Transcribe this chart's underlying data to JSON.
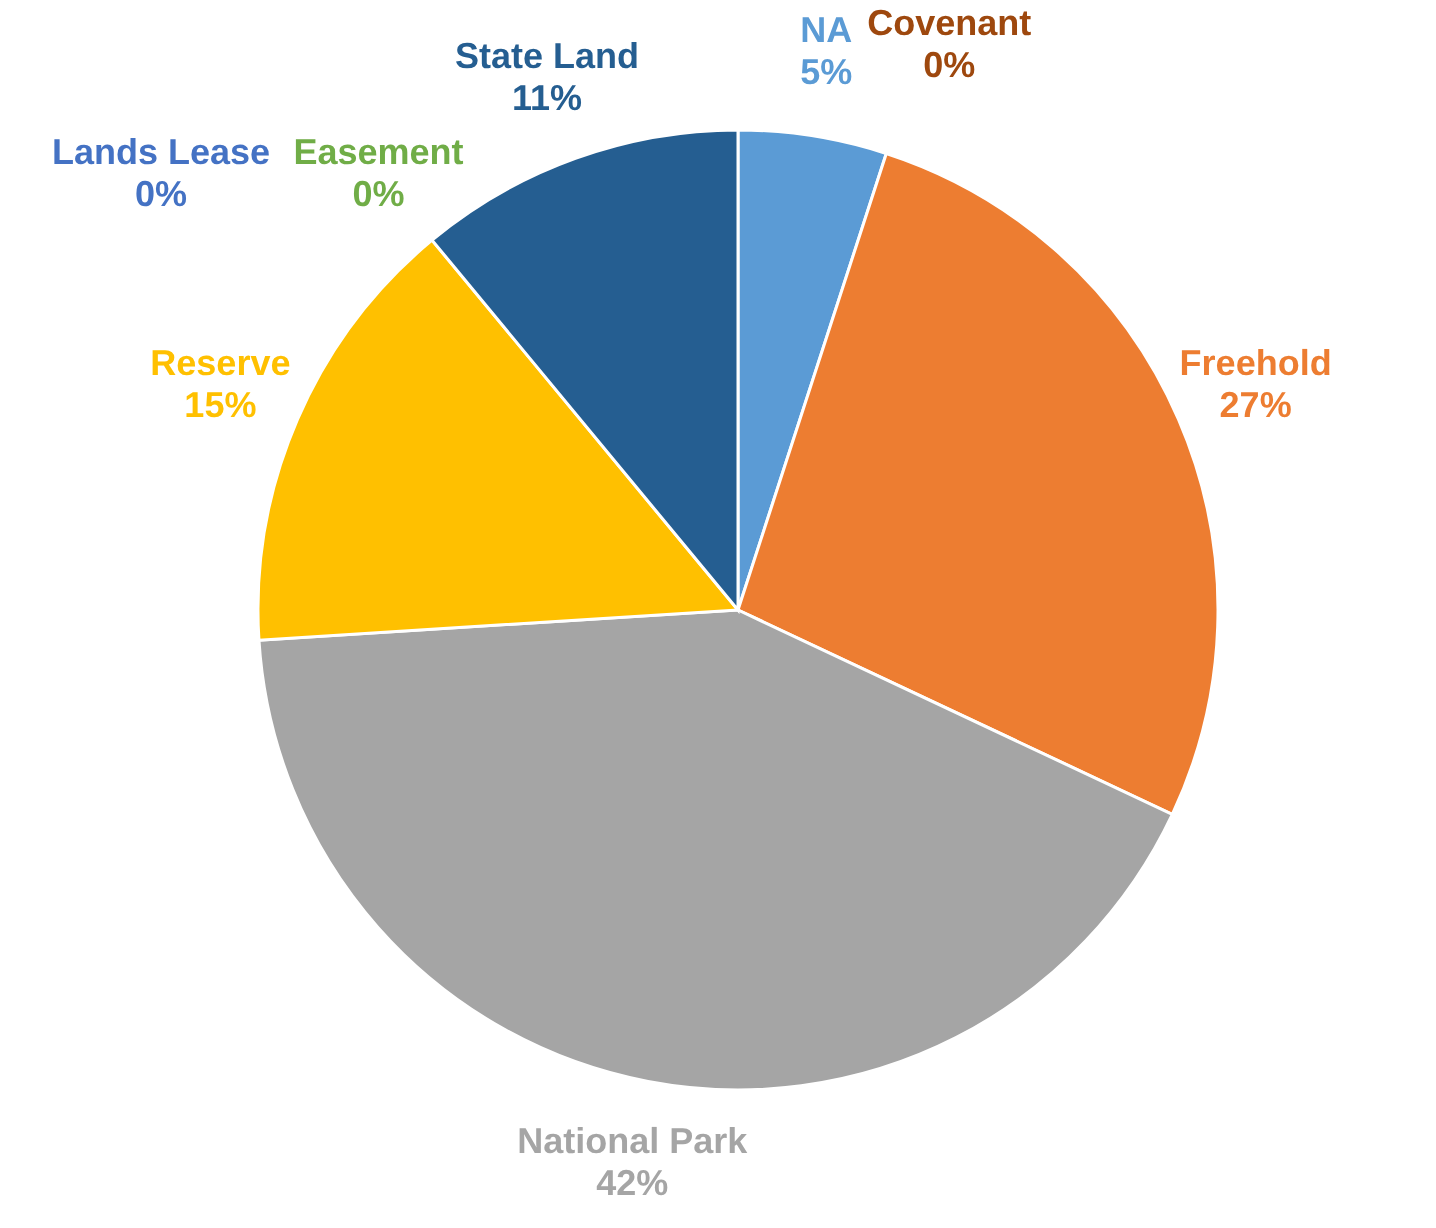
{
  "chart_data": {
    "type": "pie",
    "categories": [
      "NA",
      "Freehold",
      "National Park",
      "Reserve",
      "Easement",
      "Lands Lease",
      "State Land",
      "Covenant"
    ],
    "values": [
      5,
      27,
      42,
      15,
      0,
      0,
      11,
      0
    ],
    "value_labels": [
      "5%",
      "27%",
      "42%",
      "15%",
      "0%",
      "0%",
      "11%",
      "0%"
    ],
    "colors": [
      "#5b9bd5",
      "#ed7d31",
      "#a5a5a5",
      "#ffc000",
      "#70ad47",
      "#4472c4",
      "#255e91",
      "#9e480e"
    ]
  }
}
